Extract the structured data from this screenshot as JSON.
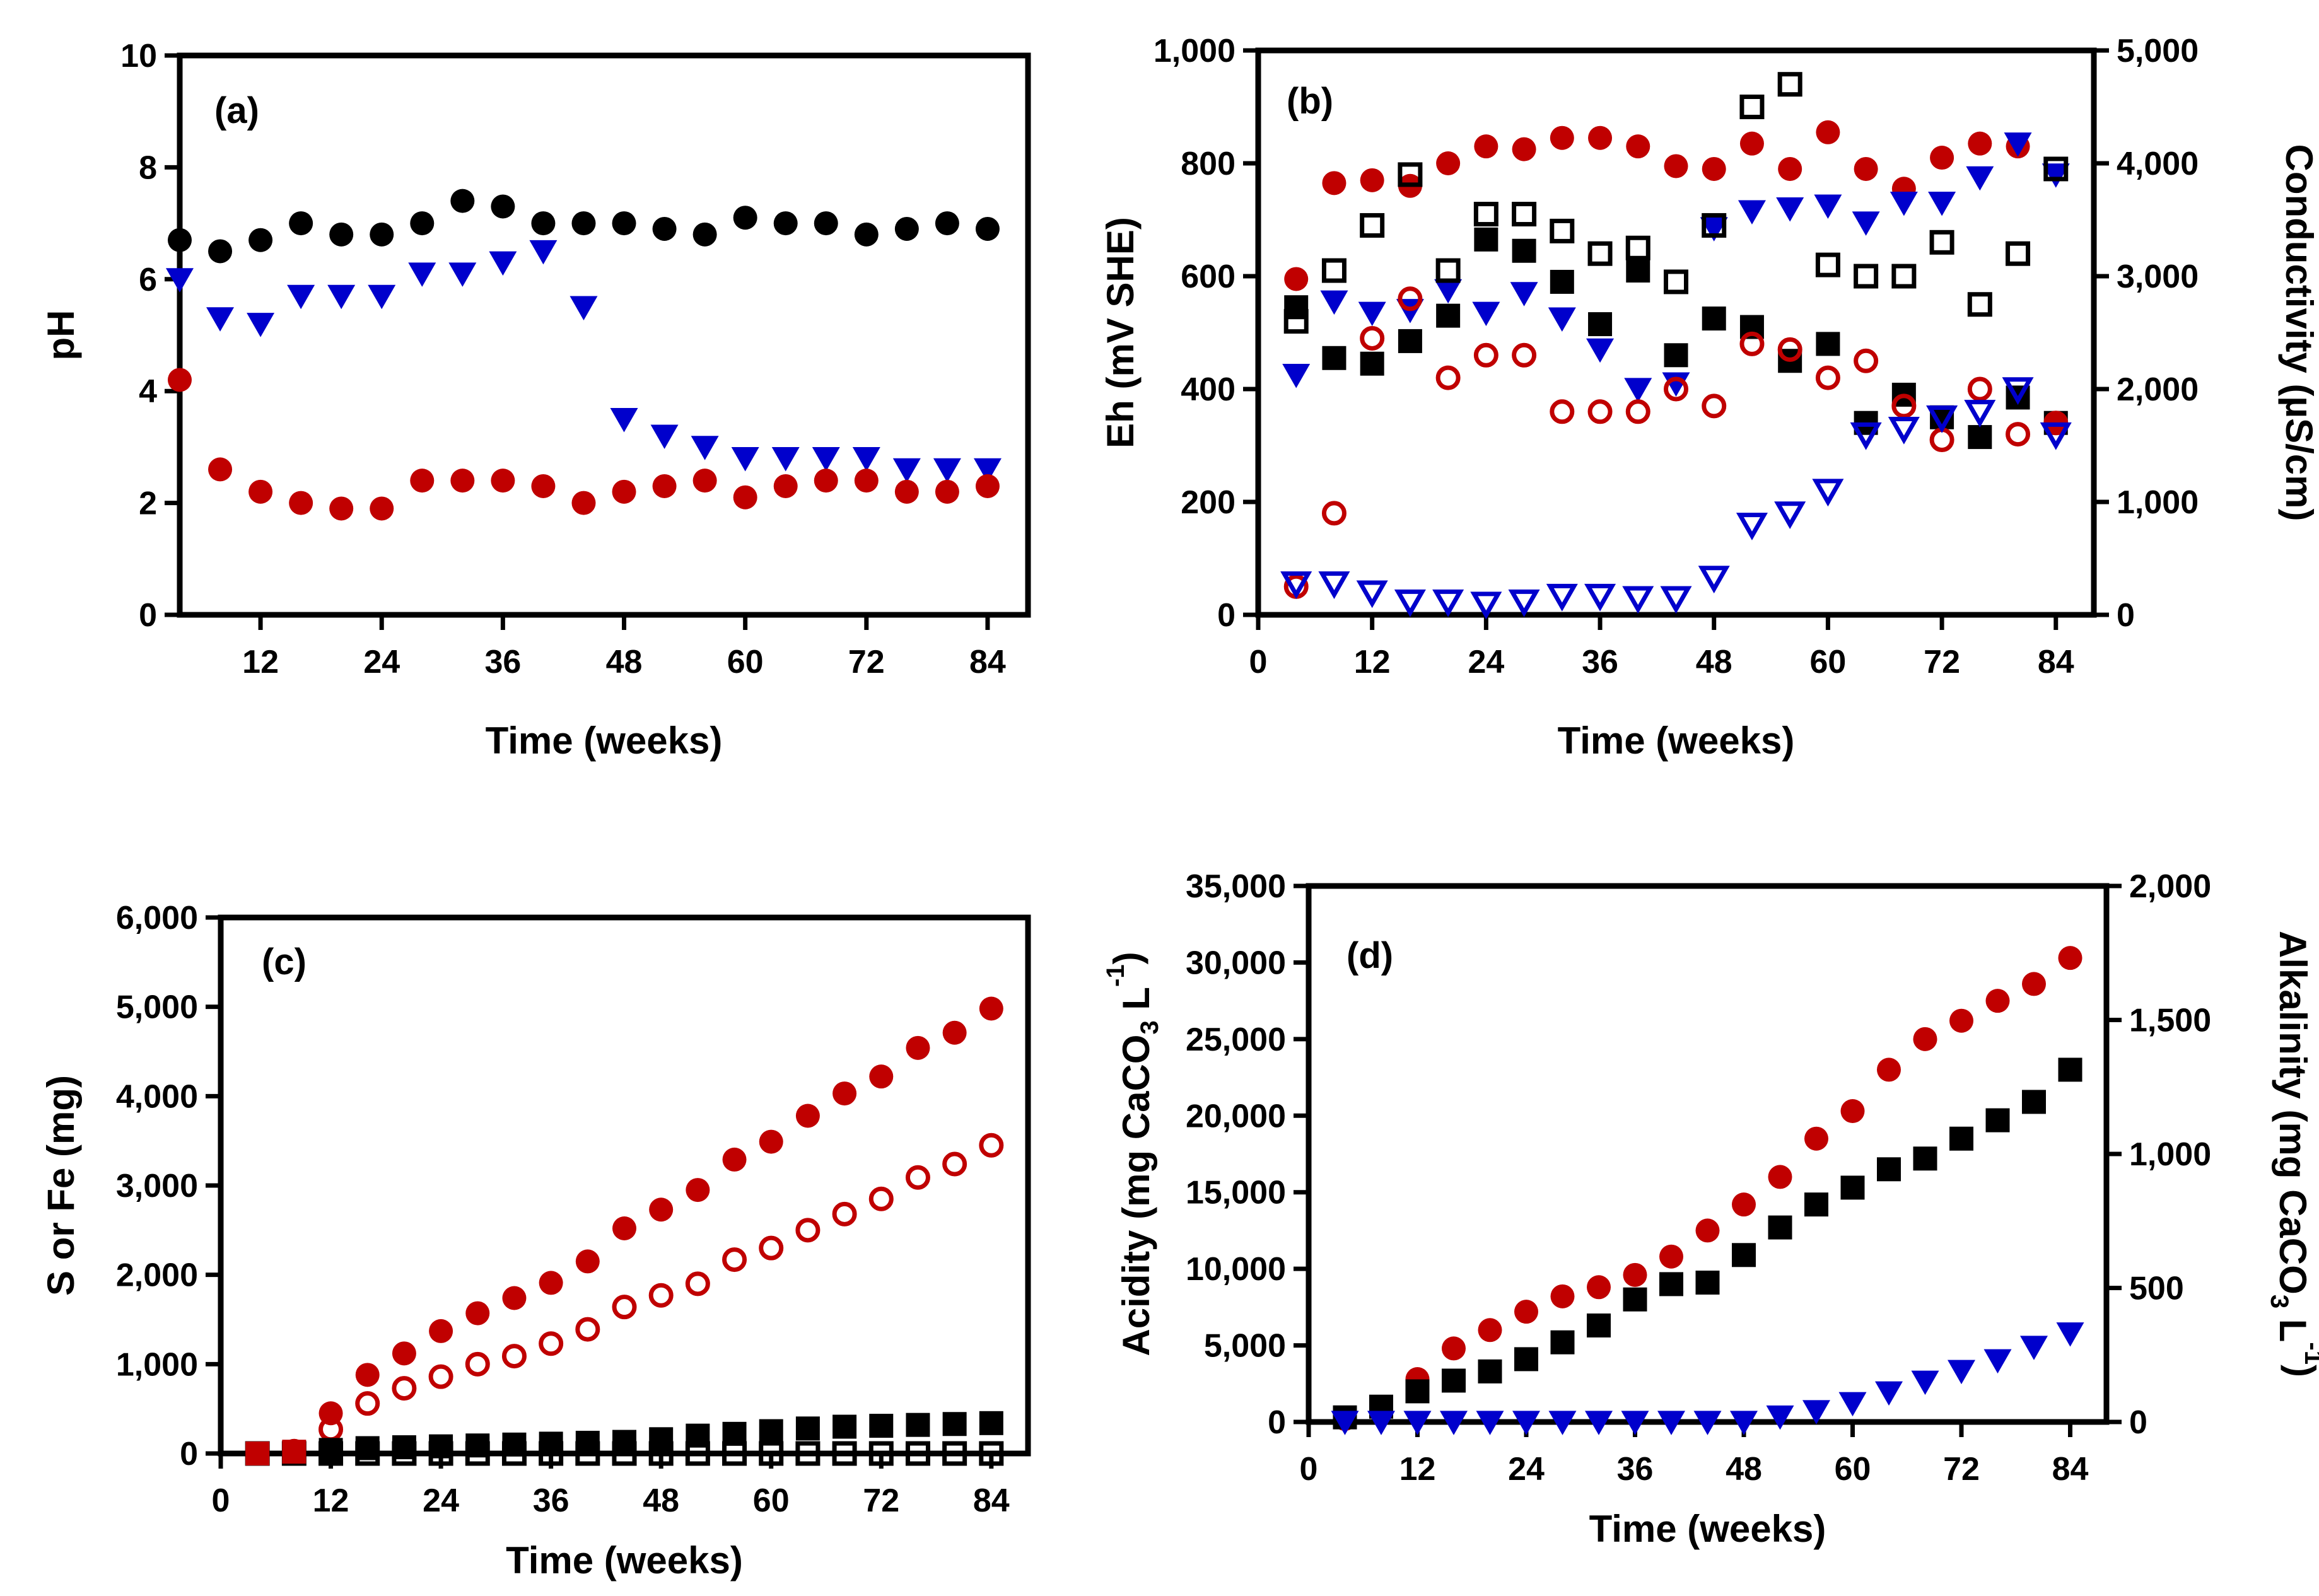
{
  "figure": {
    "colors": {
      "black": "#000000",
      "red": "#c00000",
      "blue": "#0000cc"
    }
  },
  "chart_data": [
    {
      "id": "a",
      "type": "scatter",
      "panel_label": "(a)",
      "xlabel": "Time (weeks)",
      "ylabel": "pH",
      "xlim": [
        4,
        88
      ],
      "ylim": [
        0,
        10
      ],
      "xticks": [
        12,
        24,
        36,
        48,
        60,
        72,
        84
      ],
      "xtick_labels": [
        "12",
        "24",
        "36",
        "48",
        "60",
        "72",
        "84"
      ],
      "yticks": [
        0,
        2,
        4,
        6,
        8,
        10
      ],
      "ytick_labels": [
        "0",
        "2",
        "4",
        "6",
        "8",
        "10"
      ],
      "series": [
        {
          "name": "black filled circles",
          "marker": "circle",
          "filled": true,
          "color": "#000000",
          "x": [
            4,
            8,
            12,
            16,
            20,
            24,
            28,
            32,
            36,
            40,
            44,
            48,
            52,
            56,
            60,
            64,
            68,
            72,
            76,
            80,
            84
          ],
          "y": [
            6.7,
            6.5,
            6.7,
            7.0,
            6.8,
            6.8,
            7.0,
            7.4,
            7.3,
            7.0,
            7.0,
            7.0,
            6.9,
            6.8,
            7.1,
            7.0,
            7.0,
            6.8,
            6.9,
            7.0,
            6.9
          ]
        },
        {
          "name": "blue filled triangles",
          "marker": "triangle",
          "filled": true,
          "color": "#0000cc",
          "x": [
            4,
            8,
            12,
            16,
            20,
            24,
            28,
            32,
            36,
            40,
            44,
            48,
            52,
            56,
            60,
            64,
            68,
            72,
            76,
            80,
            84
          ],
          "y": [
            6.0,
            5.3,
            5.2,
            5.7,
            5.7,
            5.7,
            6.1,
            6.1,
            6.3,
            6.5,
            5.5,
            3.5,
            3.2,
            3.0,
            2.8,
            2.8,
            2.8,
            2.8,
            2.6,
            2.6,
            2.6
          ]
        },
        {
          "name": "red filled circles",
          "marker": "circle",
          "filled": true,
          "color": "#c00000",
          "x": [
            4,
            8,
            12,
            16,
            20,
            24,
            28,
            32,
            36,
            40,
            44,
            48,
            52,
            56,
            60,
            64,
            68,
            72,
            76,
            80,
            84
          ],
          "y": [
            4.2,
            2.6,
            2.2,
            2.0,
            1.9,
            1.9,
            2.4,
            2.4,
            2.4,
            2.3,
            2.0,
            2.2,
            2.3,
            2.4,
            2.1,
            2.3,
            2.4,
            2.4,
            2.2,
            2.2,
            2.3
          ]
        }
      ]
    },
    {
      "id": "b",
      "type": "scatter",
      "panel_label": "(b)",
      "xlabel": "Time (weeks)",
      "ylabel": "Eh (mV SHE)",
      "y2label": "Conductivity (µS/cm)",
      "xlim": [
        0,
        88
      ],
      "ylim": [
        0,
        1000
      ],
      "y2lim": [
        0,
        5000
      ],
      "xticks": [
        0,
        12,
        24,
        36,
        48,
        60,
        72,
        84
      ],
      "xtick_labels": [
        "0",
        "12",
        "24",
        "36",
        "48",
        "60",
        "72",
        "84"
      ],
      "yticks": [
        0,
        200,
        400,
        600,
        800,
        1000
      ],
      "ytick_labels": [
        "0",
        "200",
        "400",
        "600",
        "800",
        "1,000"
      ],
      "y2ticks": [
        0,
        1000,
        2000,
        3000,
        4000,
        5000
      ],
      "y2tick_labels": [
        "0",
        "1,000",
        "2,000",
        "3,000",
        "4,000",
        "5,000"
      ],
      "series": [
        {
          "name": "black filled squares (Eh)",
          "marker": "square",
          "filled": true,
          "color": "#000000",
          "axis": "left",
          "x": [
            4,
            8,
            12,
            16,
            20,
            24,
            28,
            32,
            36,
            40,
            44,
            48,
            52,
            56,
            60,
            64,
            68,
            72,
            76,
            80,
            84
          ],
          "y": [
            545,
            455,
            445,
            485,
            530,
            665,
            645,
            590,
            515,
            610,
            460,
            525,
            510,
            450,
            480,
            340,
            390,
            350,
            315,
            385,
            340
          ]
        },
        {
          "name": "red filled circles (Eh)",
          "marker": "circle",
          "filled": true,
          "color": "#c00000",
          "axis": "left",
          "x": [
            4,
            8,
            12,
            16,
            20,
            24,
            28,
            32,
            36,
            40,
            44,
            48,
            52,
            56,
            60,
            64,
            68,
            72,
            76,
            80,
            84
          ],
          "y": [
            595,
            765,
            770,
            760,
            800,
            830,
            825,
            845,
            845,
            830,
            795,
            790,
            835,
            790,
            855,
            790,
            755,
            810,
            835,
            830,
            340
          ]
        },
        {
          "name": "blue filled triangles (Eh)",
          "marker": "triangle",
          "filled": true,
          "color": "#0000cc",
          "axis": "left",
          "x": [
            4,
            8,
            12,
            16,
            20,
            24,
            28,
            32,
            36,
            40,
            44,
            48,
            52,
            56,
            60,
            64,
            68,
            72,
            76,
            80,
            84
          ],
          "y": [
            425,
            555,
            535,
            540,
            575,
            535,
            570,
            525,
            470,
            400,
            410,
            685,
            715,
            720,
            725,
            695,
            730,
            730,
            775,
            835,
            780
          ]
        },
        {
          "name": "black open squares (conductivity)",
          "marker": "square",
          "filled": false,
          "color": "#000000",
          "axis": "right",
          "x": [
            4,
            8,
            12,
            16,
            20,
            24,
            28,
            32,
            36,
            40,
            44,
            48,
            52,
            56,
            60,
            64,
            68,
            72,
            76,
            80,
            84
          ],
          "y": [
            2600,
            3050,
            3450,
            3900,
            3050,
            3550,
            3550,
            3400,
            3200,
            3250,
            2950,
            3450,
            4500,
            4700,
            3100,
            3000,
            3000,
            3300,
            2750,
            3200,
            3950
          ]
        },
        {
          "name": "red open circles (conductivity)",
          "marker": "circle",
          "filled": false,
          "color": "#c00000",
          "axis": "right",
          "x": [
            4,
            8,
            12,
            16,
            20,
            24,
            28,
            32,
            36,
            40,
            44,
            48,
            52,
            56,
            60,
            64,
            68,
            72,
            76,
            80,
            84
          ],
          "y": [
            250,
            900,
            2450,
            2800,
            2100,
            2300,
            2300,
            1800,
            1800,
            1800,
            2000,
            1850,
            2400,
            2350,
            2100,
            2250,
            1850,
            1550,
            2000,
            1600,
            1700
          ]
        },
        {
          "name": "blue open triangles (conductivity)",
          "marker": "triangle",
          "filled": false,
          "color": "#0000cc",
          "axis": "right",
          "x": [
            4,
            8,
            12,
            16,
            20,
            24,
            28,
            32,
            36,
            40,
            44,
            48,
            52,
            56,
            60,
            64,
            68,
            72,
            76,
            80,
            84
          ],
          "y": [
            280,
            280,
            200,
            120,
            120,
            100,
            120,
            170,
            170,
            150,
            150,
            330,
            800,
            900,
            1100,
            1600,
            1650,
            1750,
            1800,
            2000,
            1600
          ]
        }
      ]
    },
    {
      "id": "c",
      "type": "scatter",
      "panel_label": "(c)",
      "xlabel": "Time (weeks)",
      "ylabel": "S or Fe (mg)",
      "xlim": [
        0,
        88
      ],
      "ylim": [
        0,
        6000
      ],
      "xticks": [
        0,
        12,
        24,
        36,
        48,
        60,
        72,
        84
      ],
      "xtick_labels": [
        "0",
        "12",
        "24",
        "36",
        "48",
        "60",
        "72",
        "84"
      ],
      "yticks": [
        0,
        1000,
        2000,
        3000,
        4000,
        5000,
        6000
      ],
      "ytick_labels": [
        "0",
        "1,000",
        "2,000",
        "3,000",
        "4,000",
        "5,000",
        "6,000"
      ],
      "series": [
        {
          "name": "red filled circles",
          "marker": "circle",
          "filled": true,
          "color": "#c00000",
          "x": [
            4,
            8,
            12,
            16,
            20,
            24,
            28,
            32,
            36,
            40,
            44,
            48,
            52,
            56,
            60,
            64,
            68,
            72,
            76,
            80,
            84
          ],
          "y": [
            0,
            30,
            450,
            880,
            1120,
            1370,
            1570,
            1740,
            1910,
            2150,
            2520,
            2730,
            2950,
            3290,
            3490,
            3780,
            4030,
            4220,
            4540,
            4710,
            4980
          ]
        },
        {
          "name": "red open circles",
          "marker": "circle",
          "filled": false,
          "color": "#c00000",
          "x": [
            4,
            8,
            12,
            16,
            20,
            24,
            28,
            32,
            36,
            40,
            44,
            48,
            52,
            56,
            60,
            64,
            68,
            72,
            76,
            80,
            84
          ],
          "y": [
            0,
            20,
            270,
            560,
            730,
            860,
            1000,
            1090,
            1230,
            1390,
            1640,
            1770,
            1900,
            2170,
            2300,
            2500,
            2680,
            2850,
            3090,
            3240,
            3450
          ]
        },
        {
          "name": "black filled squares",
          "marker": "square",
          "filled": true,
          "color": "#000000",
          "x": [
            4,
            8,
            12,
            16,
            20,
            24,
            28,
            32,
            36,
            40,
            44,
            48,
            52,
            56,
            60,
            64,
            68,
            72,
            76,
            80,
            84
          ],
          "y": [
            0,
            10,
            40,
            60,
            70,
            80,
            90,
            100,
            110,
            120,
            130,
            160,
            200,
            220,
            250,
            280,
            300,
            310,
            320,
            330,
            340
          ]
        },
        {
          "name": "black open squares",
          "marker": "square",
          "filled": false,
          "color": "#000000",
          "x": [
            4,
            8,
            12,
            16,
            20,
            24,
            28,
            32,
            36,
            40,
            44,
            48,
            52,
            56,
            60,
            64,
            68,
            72,
            76,
            80,
            84
          ],
          "y": [
            0,
            0,
            0,
            0,
            0,
            0,
            0,
            0,
            0,
            0,
            0,
            0,
            0,
            0,
            0,
            0,
            0,
            0,
            0,
            0,
            0
          ]
        },
        {
          "name": "red squares (early)",
          "marker": "square",
          "filled": true,
          "color": "#c00000",
          "x": [
            4,
            8
          ],
          "y": [
            0,
            20
          ]
        }
      ]
    },
    {
      "id": "d",
      "type": "scatter",
      "panel_label": "(d)",
      "xlabel": "Time (weeks)",
      "ylabel_parts": [
        "Acidity (mg CaCO",
        "3",
        " L",
        "-1",
        ")"
      ],
      "y2label_parts": [
        "Alkalinity (mg CaCO",
        "3",
        " L",
        "-1",
        ")"
      ],
      "xlim": [
        0,
        88
      ],
      "ylim": [
        0,
        35000
      ],
      "y2lim": [
        0,
        2000
      ],
      "xticks": [
        0,
        12,
        24,
        36,
        48,
        60,
        72,
        84
      ],
      "xtick_labels": [
        "0",
        "12",
        "24",
        "36",
        "48",
        "60",
        "72",
        "84"
      ],
      "yticks": [
        0,
        5000,
        10000,
        15000,
        20000,
        25000,
        30000,
        35000
      ],
      "ytick_labels": [
        "0",
        "5,000",
        "10,000",
        "15,000",
        "20,000",
        "25,000",
        "30,000",
        "35,000"
      ],
      "y2ticks": [
        0,
        500,
        1000,
        1500,
        2000
      ],
      "y2tick_labels": [
        "0",
        "500",
        "1,000",
        "1,500",
        "2,000"
      ],
      "series": [
        {
          "name": "red filled circles (acidity)",
          "marker": "circle",
          "filled": true,
          "color": "#c00000",
          "axis": "left",
          "x": [
            4,
            8,
            12,
            16,
            20,
            24,
            28,
            32,
            36,
            40,
            44,
            48,
            52,
            56,
            60,
            64,
            68,
            72,
            76,
            80,
            84
          ],
          "y": [
            200,
            800,
            2800,
            4800,
            6000,
            7200,
            8200,
            8800,
            9600,
            10800,
            12500,
            14200,
            16000,
            18500,
            20300,
            23000,
            25000,
            26200,
            27500,
            28600,
            30300
          ]
        },
        {
          "name": "black filled squares (acidity)",
          "marker": "square",
          "filled": true,
          "color": "#000000",
          "axis": "left",
          "x": [
            4,
            8,
            12,
            16,
            20,
            24,
            28,
            32,
            36,
            40,
            44,
            48,
            52,
            56,
            60,
            64,
            68,
            72,
            76,
            80,
            84
          ],
          "y": [
            300,
            1000,
            2000,
            2700,
            3300,
            4100,
            5200,
            6300,
            8000,
            9000,
            9100,
            10900,
            12700,
            14200,
            15300,
            16500,
            17200,
            18500,
            19700,
            20900,
            23000
          ]
        },
        {
          "name": "blue filled triangles (alkalinity)",
          "marker": "triangle",
          "filled": true,
          "color": "#0000cc",
          "axis": "right",
          "x": [
            4,
            8,
            12,
            16,
            20,
            24,
            28,
            32,
            36,
            40,
            44,
            48,
            52,
            56,
            60,
            64,
            68,
            72,
            76,
            80,
            84
          ],
          "y": [
            0,
            0,
            0,
            0,
            0,
            0,
            0,
            0,
            0,
            0,
            0,
            0,
            20,
            40,
            70,
            110,
            150,
            190,
            230,
            280,
            330
          ]
        }
      ]
    }
  ]
}
